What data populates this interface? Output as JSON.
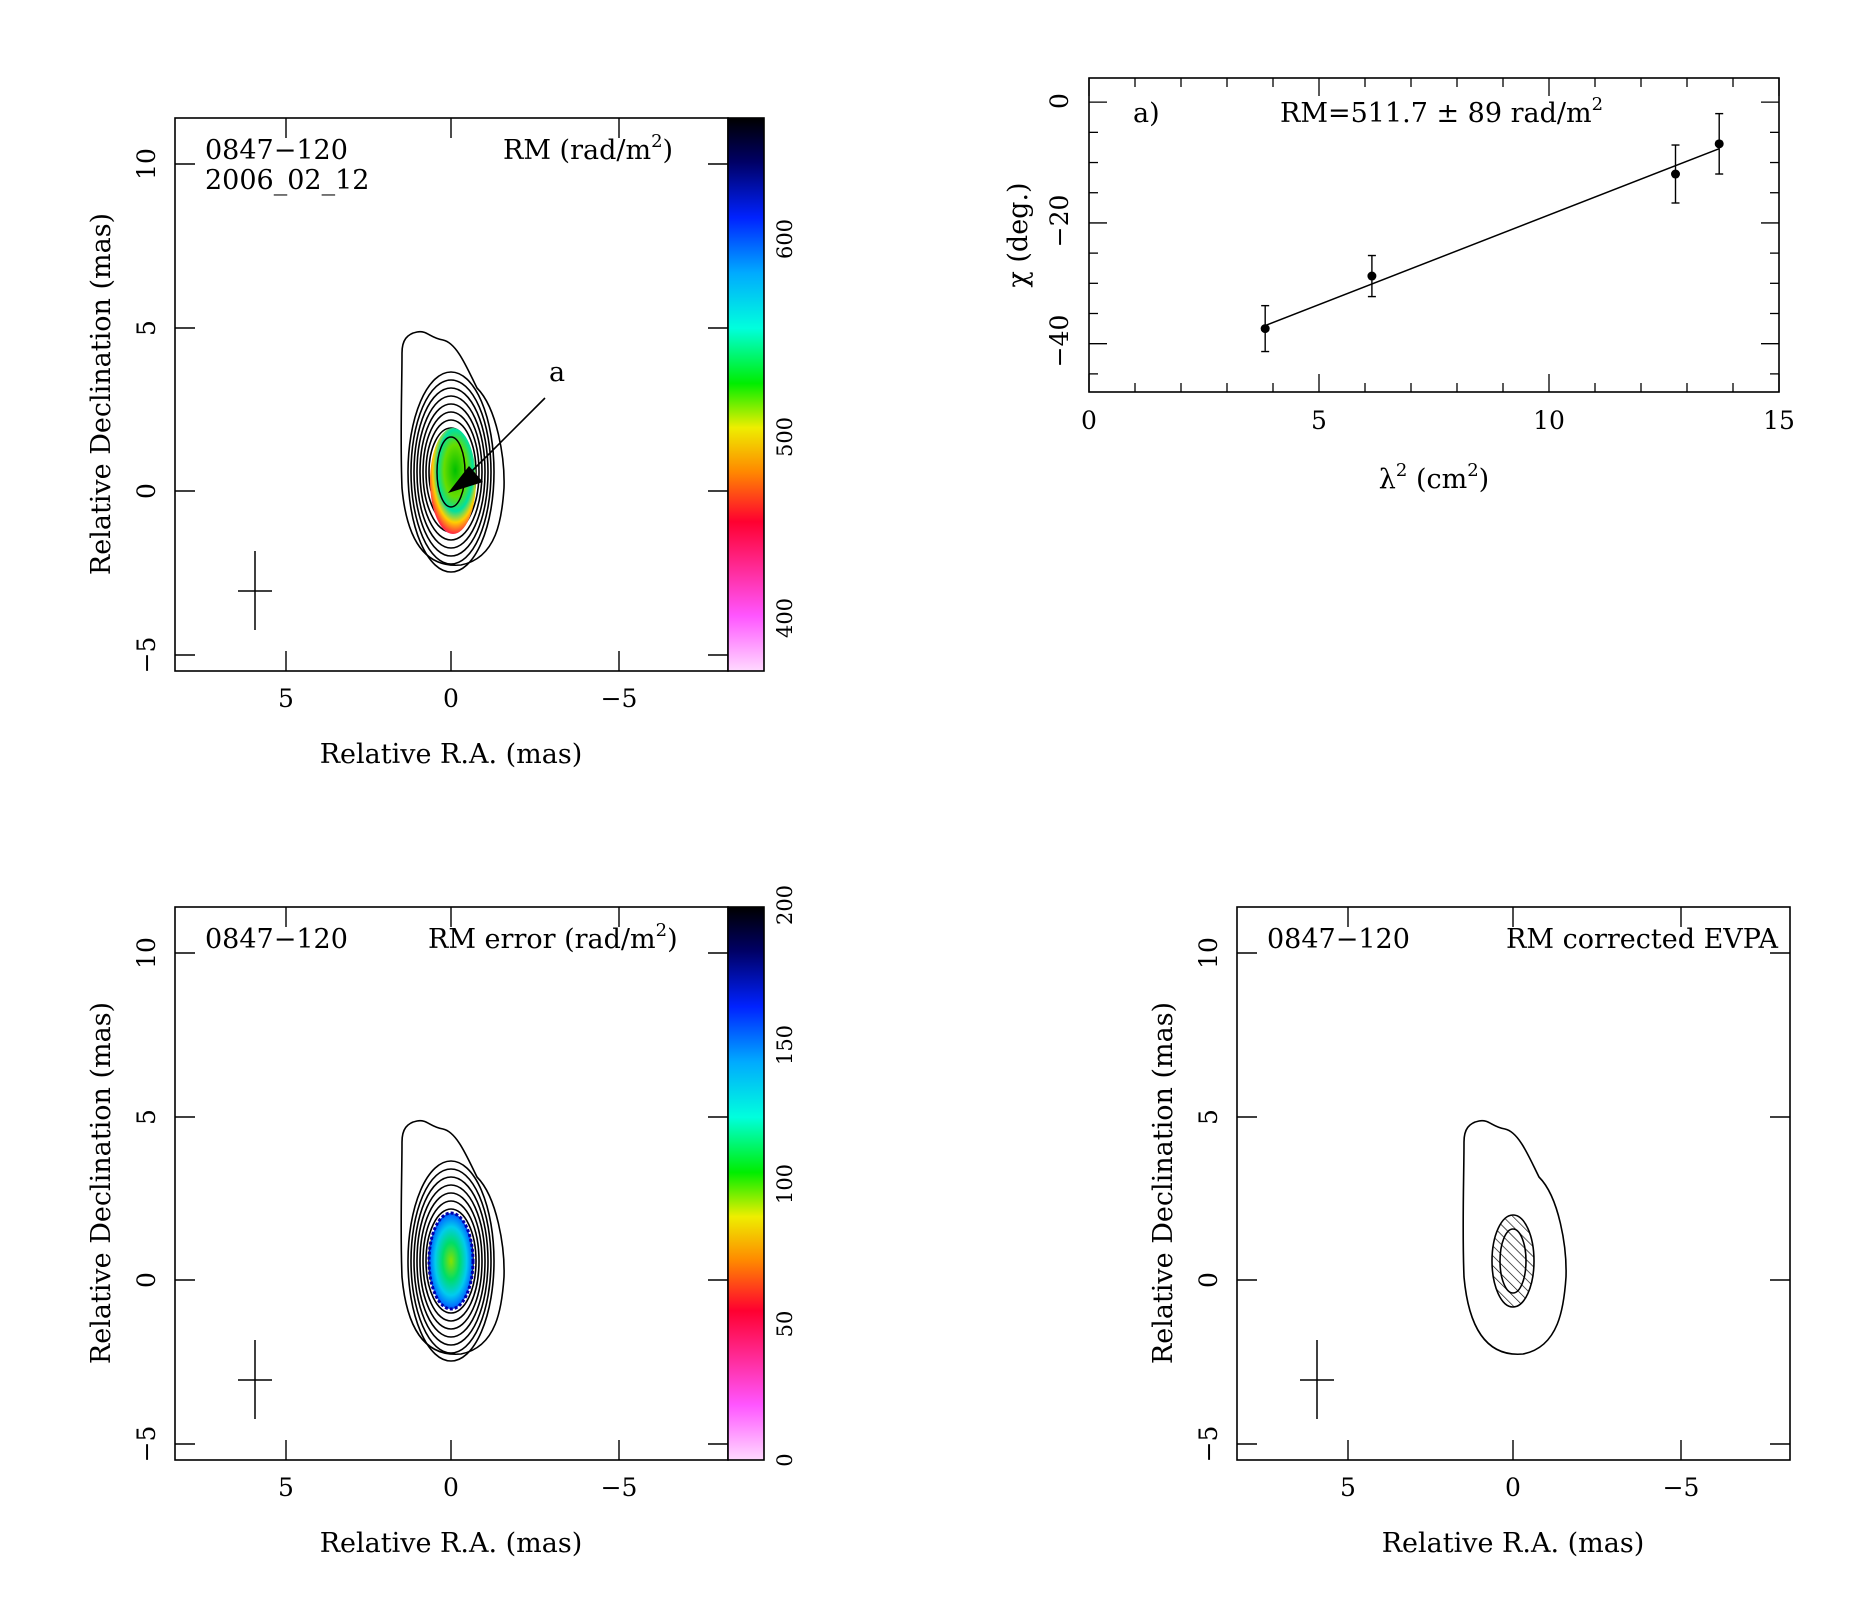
{
  "panels": {
    "rm_map": {
      "source": "0847−120",
      "epoch": "2006_02_12",
      "label_main": "RM (rad/m",
      "label_sup": "2",
      "label_close": ")",
      "xlabel": "Relative R.A. (mas)",
      "ylabel": "Relative Declination (mas)",
      "xticks": [
        "5",
        "0",
        "−5"
      ],
      "yticks": [
        "−5",
        "0",
        "5",
        "10"
      ],
      "colorbar_ticks": [
        "400",
        "500",
        "600"
      ],
      "annotation": "a"
    },
    "fit": {
      "label": "a)",
      "rm_text": "RM=511.7 ± 89 rad/m",
      "rm_sup": "2",
      "xlabel_main": "λ",
      "xlabel_sup": "2",
      "xlabel_rest": " (cm",
      "xlabel_sup2": "2",
      "xlabel_close": ")",
      "ylabel": "χ (deg.)",
      "xticks": [
        "0",
        "5",
        "10",
        "15"
      ],
      "yticks": [
        "0",
        "−20",
        "−40"
      ]
    },
    "rm_error": {
      "source": "0847−120",
      "label_main": "RM error (rad/m",
      "label_sup": "2",
      "label_close": ")",
      "xlabel": "Relative R.A. (mas)",
      "ylabel": "Relative Declination (mas)",
      "xticks": [
        "5",
        "0",
        "−5"
      ],
      "yticks": [
        "−5",
        "0",
        "5",
        "10"
      ],
      "colorbar_ticks": [
        "0",
        "50",
        "100",
        "150",
        "200"
      ]
    },
    "evpa": {
      "source": "0847−120",
      "label": "RM corrected EVPA",
      "xlabel": "Relative R.A. (mas)",
      "ylabel": "Relative Declination (mas)",
      "xticks": [
        "5",
        "0",
        "−5"
      ],
      "yticks": [
        "−5",
        "0",
        "5",
        "10"
      ]
    }
  },
  "chart_data": [
    {
      "type": "heatmap",
      "title": "RM (rad/m2)",
      "xlabel": "Relative R.A. (mas)",
      "ylabel": "Relative Declination (mas)",
      "xlim": [
        8.5,
        -8.5
      ],
      "ylim": [
        -5.5,
        11.5
      ],
      "colorbar_range": [
        380,
        650
      ],
      "colormap": "rainbow (white-magenta-red-yellow-green-cyan-blue-black)",
      "source": "0847−120",
      "epoch": "2006_02_12"
    },
    {
      "type": "scatter",
      "title": "RM=511.7 ± 89 rad/m2",
      "xlabel": "λ2 (cm2)",
      "ylabel": "χ (deg.)",
      "xlim": [
        0,
        15
      ],
      "ylim": [
        -48,
        4
      ],
      "points": [
        {
          "x": 3.83,
          "y": -37.5,
          "err": 3.8
        },
        {
          "x": 6.15,
          "y": -28.8,
          "err": 3.4
        },
        {
          "x": 12.75,
          "y": -11.9,
          "err": 4.8
        },
        {
          "x": 13.7,
          "y": -6.9,
          "err": 5.0
        }
      ],
      "fit_line": {
        "x": [
          3.83,
          13.7
        ],
        "y": [
          -37.0,
          -7.7
        ]
      }
    },
    {
      "type": "heatmap",
      "title": "RM error (rad/m2)",
      "xlabel": "Relative R.A. (mas)",
      "ylabel": "Relative Declination (mas)",
      "xlim": [
        8.5,
        -8.5
      ],
      "ylim": [
        -5.5,
        11.5
      ],
      "colorbar_range": [
        0,
        200
      ],
      "source": "0847−120"
    },
    {
      "type": "heatmap",
      "title": "RM corrected EVPA",
      "xlabel": "Relative R.A. (mas)",
      "ylabel": "Relative Declination (mas)",
      "xlim": [
        8.5,
        -8.5
      ],
      "ylim": [
        -5.5,
        11.5
      ],
      "source": "0847−120"
    }
  ]
}
